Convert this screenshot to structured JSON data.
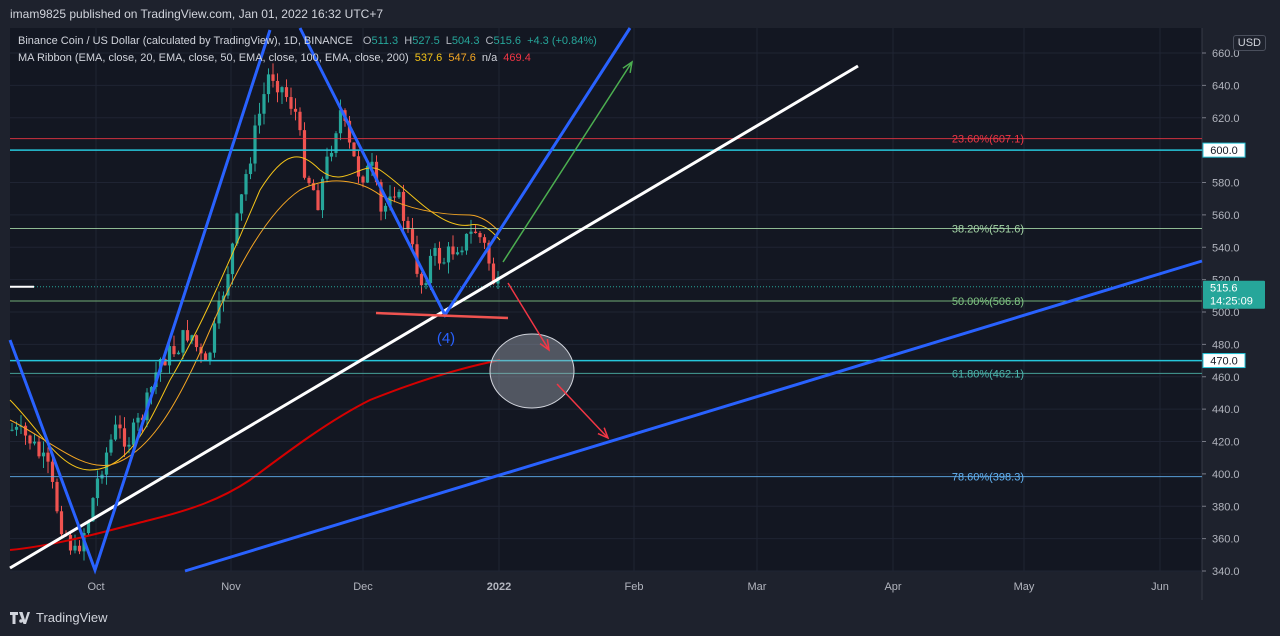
{
  "header": {
    "publisher": "imam9825 published on TradingView.com, Jan 01, 2022 16:32 UTC+7"
  },
  "legend": {
    "symbol": "Binance Coin / US Dollar (calculated by TradingView), 1D, BINANCE",
    "o_label": "O",
    "o": "511.3",
    "h_label": "H",
    "h": "527.5",
    "l_label": "L",
    "l": "504.3",
    "c_label": "C",
    "c": "515.6",
    "change": "+4.3 (+0.84%)",
    "ma_name": "MA Ribbon (EMA, close, 20, EMA, close, 50, EMA, close, 100, EMA, close, 200)",
    "ma1": "537.6",
    "ma2": "547.6",
    "ma3": "n/a",
    "ma4": "469.4"
  },
  "currency": "USD",
  "footer": {
    "brand": "TradingView"
  },
  "colors": {
    "bg": "#1e222d",
    "up": "#26a69a",
    "down": "#ef5350",
    "fib_red": "#f23645",
    "fib_green": "#a5d6a7",
    "fib_teal": "#4db6ac",
    "fib_blue": "#64b5f6",
    "cyan": "#26c6da",
    "blue_line": "#2962ff",
    "ema200": "#d50000",
    "ema_orange": "#f5a623"
  },
  "chart_data": {
    "type": "candlestick",
    "ylim": [
      340,
      665
    ],
    "y_ticks": [
      "340.0",
      "360.0",
      "380.0",
      "400.0",
      "420.0",
      "440.0",
      "460.0",
      "480.0",
      "500.0",
      "520.0",
      "540.0",
      "560.0",
      "580.0",
      "600.0",
      "620.0",
      "640.0",
      "660.0"
    ],
    "x_ticks": [
      "Oct",
      "Nov",
      "Dec",
      "2022",
      "Feb",
      "Mar",
      "Apr",
      "May",
      "Jun"
    ],
    "fib_levels": [
      {
        "label": "23.60%(607.1)",
        "value": 607.1,
        "color": "#f23645"
      },
      {
        "label": "38.20%(551.6)",
        "value": 551.6,
        "color": "#a5d6a7"
      },
      {
        "label": "50.00%(506.8)",
        "value": 506.8,
        "color": "#81c784"
      },
      {
        "label": "61.80%(462.1)",
        "value": 462.1,
        "color": "#4db6ac"
      },
      {
        "label": "78.60%(398.3)",
        "value": 398.3,
        "color": "#64b5f6"
      }
    ],
    "horizontal_levels": [
      {
        "label": "600.0",
        "value": 600
      },
      {
        "label": "470.0",
        "value": 470
      }
    ],
    "last_price": {
      "value": 515.6,
      "label": "515.6",
      "countdown": "14:25:09"
    },
    "annotation_wave": "(4)"
  }
}
